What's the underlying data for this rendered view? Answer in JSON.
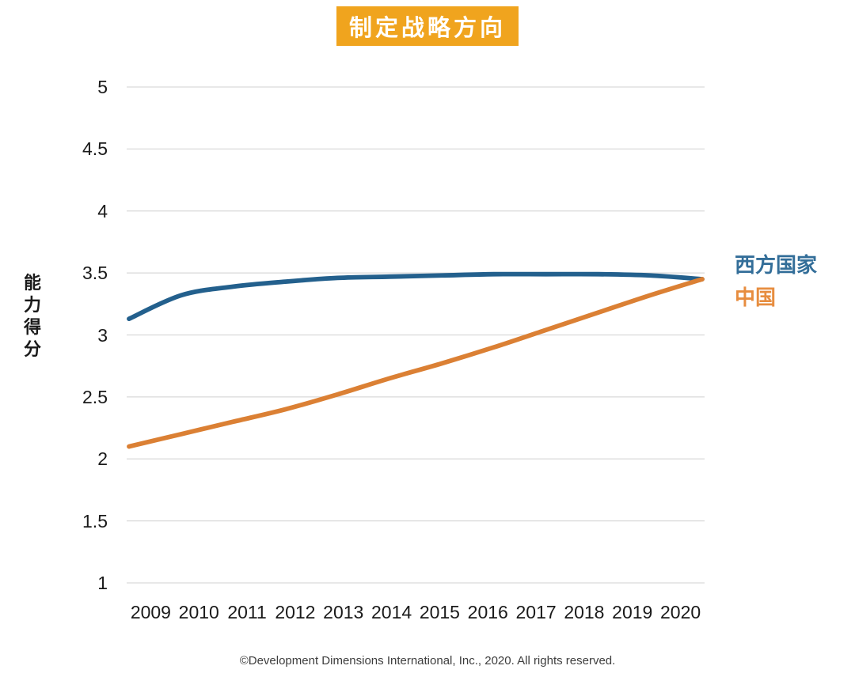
{
  "title": {
    "text": "制定战略方向",
    "bg_color": "#F0A41E",
    "text_color": "#FFFFFF"
  },
  "footer": "©Development Dimensions International, Inc., 2020. All rights reserved.",
  "chart_data": {
    "type": "line",
    "title": "制定战略方向",
    "xlabel": "",
    "ylabel": "能力得分",
    "ylabel_vertical": "能\n力\n得\n分",
    "x": [
      "2009",
      "2010",
      "2011",
      "2012",
      "2013",
      "2014",
      "2015",
      "2016",
      "2017",
      "2018",
      "2019",
      "2020"
    ],
    "series": [
      {
        "name": "西方国家",
        "color": "#23608D",
        "legend_color": "#336E99",
        "values": [
          3.13,
          3.32,
          3.39,
          3.43,
          3.46,
          3.47,
          3.48,
          3.49,
          3.49,
          3.49,
          3.48,
          3.45
        ]
      },
      {
        "name": "中国",
        "color": "#DB8034",
        "legend_color": "#E78D3F",
        "values": [
          2.1,
          2.2,
          2.3,
          2.4,
          2.52,
          2.65,
          2.77,
          2.9,
          3.04,
          3.18,
          3.32,
          3.45
        ]
      }
    ],
    "ylim": [
      1,
      5
    ],
    "yticks": [
      5,
      4.5,
      4,
      3.5,
      3,
      2.5,
      2,
      1.5,
      1
    ],
    "grid": "horizontal",
    "grid_color": "#D9D9D9",
    "legend_position": "right"
  }
}
